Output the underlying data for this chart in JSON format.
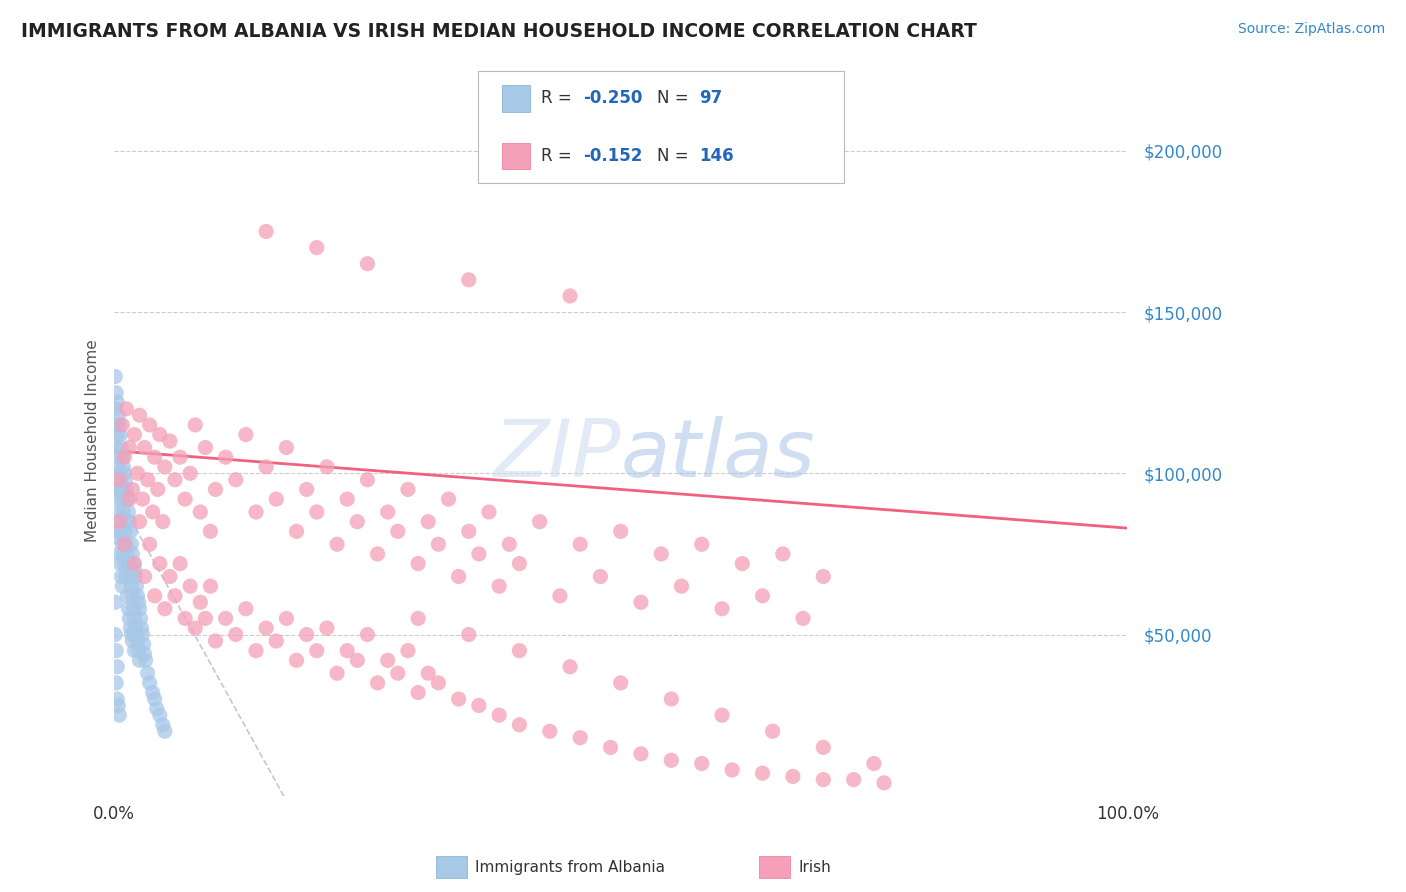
{
  "title": "IMMIGRANTS FROM ALBANIA VS IRISH MEDIAN HOUSEHOLD INCOME CORRELATION CHART",
  "source_text": "Source: ZipAtlas.com",
  "ylabel": "Median Household Income",
  "xlim": [
    0.0,
    1.0
  ],
  "ylim": [
    0,
    220000
  ],
  "color_albania": "#a8c8e8",
  "color_irish": "#f4a0b8",
  "color_albania_edge": "#7aafd4",
  "color_irish_edge": "#e87898",
  "color_line_albania": "#aabbcc",
  "color_line_irish": "#f06080",
  "watermark_text": "ZIP atlas",
  "watermark_color": "#c8d8f0",
  "background_color": "#ffffff",
  "grid_color": "#cccccc",
  "title_color": "#222222",
  "axis_label_color": "#555555",
  "tick_color_right": "#3388cc",
  "albania_x": [
    0.001,
    0.001,
    0.002,
    0.002,
    0.002,
    0.002,
    0.003,
    0.003,
    0.003,
    0.003,
    0.003,
    0.004,
    0.004,
    0.004,
    0.004,
    0.005,
    0.005,
    0.005,
    0.005,
    0.006,
    0.006,
    0.006,
    0.006,
    0.007,
    0.007,
    0.007,
    0.007,
    0.008,
    0.008,
    0.008,
    0.008,
    0.009,
    0.009,
    0.009,
    0.01,
    0.01,
    0.01,
    0.011,
    0.011,
    0.011,
    0.012,
    0.012,
    0.013,
    0.013,
    0.013,
    0.014,
    0.014,
    0.014,
    0.015,
    0.015,
    0.015,
    0.016,
    0.016,
    0.016,
    0.017,
    0.017,
    0.017,
    0.018,
    0.018,
    0.018,
    0.019,
    0.019,
    0.02,
    0.02,
    0.02,
    0.021,
    0.021,
    0.022,
    0.022,
    0.023,
    0.023,
    0.024,
    0.024,
    0.025,
    0.025,
    0.026,
    0.027,
    0.028,
    0.029,
    0.03,
    0.031,
    0.033,
    0.035,
    0.038,
    0.04,
    0.042,
    0.045,
    0.048,
    0.05,
    0.001,
    0.001,
    0.002,
    0.002,
    0.003,
    0.003,
    0.004,
    0.005
  ],
  "albania_y": [
    130000,
    120000,
    125000,
    115000,
    108000,
    95000,
    122000,
    112000,
    102000,
    92000,
    82000,
    118000,
    105000,
    95000,
    80000,
    115000,
    100000,
    88000,
    75000,
    112000,
    98000,
    85000,
    72000,
    108000,
    95000,
    82000,
    68000,
    105000,
    92000,
    78000,
    65000,
    102000,
    88000,
    75000,
    100000,
    85000,
    72000,
    98000,
    82000,
    68000,
    95000,
    78000,
    92000,
    75000,
    62000,
    88000,
    72000,
    58000,
    85000,
    70000,
    55000,
    82000,
    68000,
    52000,
    78000,
    65000,
    50000,
    75000,
    62000,
    48000,
    72000,
    58000,
    70000,
    55000,
    45000,
    68000,
    52000,
    65000,
    50000,
    62000,
    48000,
    60000,
    45000,
    58000,
    42000,
    55000,
    52000,
    50000,
    47000,
    44000,
    42000,
    38000,
    35000,
    32000,
    30000,
    27000,
    25000,
    22000,
    20000,
    60000,
    50000,
    45000,
    35000,
    40000,
    30000,
    28000,
    25000
  ],
  "irish_x": [
    0.005,
    0.008,
    0.01,
    0.012,
    0.015,
    0.018,
    0.02,
    0.023,
    0.025,
    0.028,
    0.03,
    0.033,
    0.035,
    0.038,
    0.04,
    0.043,
    0.045,
    0.048,
    0.05,
    0.055,
    0.06,
    0.065,
    0.07,
    0.075,
    0.08,
    0.085,
    0.09,
    0.095,
    0.1,
    0.11,
    0.12,
    0.13,
    0.14,
    0.15,
    0.16,
    0.17,
    0.18,
    0.19,
    0.2,
    0.21,
    0.22,
    0.23,
    0.24,
    0.25,
    0.26,
    0.27,
    0.28,
    0.29,
    0.3,
    0.31,
    0.32,
    0.33,
    0.34,
    0.35,
    0.36,
    0.37,
    0.38,
    0.39,
    0.4,
    0.42,
    0.44,
    0.46,
    0.48,
    0.5,
    0.52,
    0.54,
    0.56,
    0.58,
    0.6,
    0.62,
    0.64,
    0.66,
    0.68,
    0.7,
    0.005,
    0.01,
    0.015,
    0.02,
    0.025,
    0.03,
    0.035,
    0.04,
    0.045,
    0.05,
    0.055,
    0.06,
    0.065,
    0.07,
    0.075,
    0.08,
    0.085,
    0.09,
    0.095,
    0.1,
    0.11,
    0.12,
    0.13,
    0.14,
    0.15,
    0.16,
    0.17,
    0.18,
    0.19,
    0.2,
    0.21,
    0.22,
    0.23,
    0.24,
    0.25,
    0.26,
    0.27,
    0.28,
    0.29,
    0.3,
    0.31,
    0.32,
    0.34,
    0.36,
    0.38,
    0.4,
    0.43,
    0.46,
    0.49,
    0.52,
    0.55,
    0.58,
    0.61,
    0.64,
    0.67,
    0.7,
    0.73,
    0.76,
    0.3,
    0.35,
    0.4,
    0.45,
    0.5,
    0.55,
    0.6,
    0.65,
    0.7,
    0.75,
    0.15,
    0.2,
    0.25,
    0.35,
    0.45
  ],
  "irish_y": [
    98000,
    115000,
    105000,
    120000,
    108000,
    95000,
    112000,
    100000,
    118000,
    92000,
    108000,
    98000,
    115000,
    88000,
    105000,
    95000,
    112000,
    85000,
    102000,
    110000,
    98000,
    105000,
    92000,
    100000,
    115000,
    88000,
    108000,
    82000,
    95000,
    105000,
    98000,
    112000,
    88000,
    102000,
    92000,
    108000,
    82000,
    95000,
    88000,
    102000,
    78000,
    92000,
    85000,
    98000,
    75000,
    88000,
    82000,
    95000,
    72000,
    85000,
    78000,
    92000,
    68000,
    82000,
    75000,
    88000,
    65000,
    78000,
    72000,
    85000,
    62000,
    78000,
    68000,
    82000,
    60000,
    75000,
    65000,
    78000,
    58000,
    72000,
    62000,
    75000,
    55000,
    68000,
    85000,
    78000,
    92000,
    72000,
    85000,
    68000,
    78000,
    62000,
    72000,
    58000,
    68000,
    62000,
    72000,
    55000,
    65000,
    52000,
    60000,
    55000,
    65000,
    48000,
    55000,
    50000,
    58000,
    45000,
    52000,
    48000,
    55000,
    42000,
    50000,
    45000,
    52000,
    38000,
    45000,
    42000,
    50000,
    35000,
    42000,
    38000,
    45000,
    32000,
    38000,
    35000,
    30000,
    28000,
    25000,
    22000,
    20000,
    18000,
    15000,
    13000,
    11000,
    10000,
    8000,
    7000,
    6000,
    5000,
    5000,
    4000,
    55000,
    50000,
    45000,
    40000,
    35000,
    30000,
    25000,
    20000,
    15000,
    10000,
    175000,
    170000,
    165000,
    160000,
    155000
  ]
}
